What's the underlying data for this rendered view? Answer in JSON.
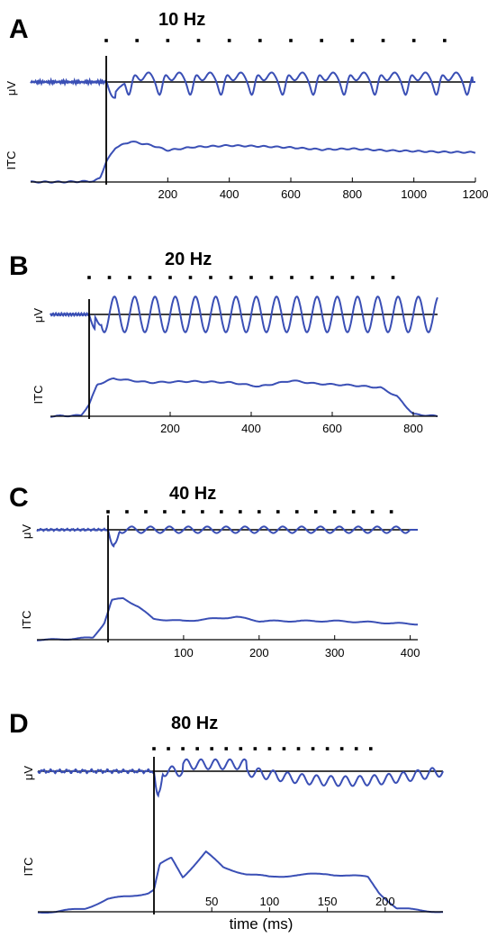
{
  "colors": {
    "trace": "#3a4fb5",
    "axis": "#000000",
    "stim": "#000000"
  },
  "chart_data": [
    {
      "type": "line",
      "panel": "A",
      "title": "10 Hz",
      "ylabel_top": "μV",
      "ylabel_bottom": "ITC",
      "xlabel": "",
      "x_ticks": [
        200,
        400,
        600,
        800,
        1000,
        1200
      ],
      "xlim": [
        -150,
        1200
      ],
      "stimulus_onset": 0,
      "stim_markers": [
        0,
        100,
        200,
        300,
        400,
        500,
        600,
        700,
        800,
        900,
        1000,
        1100
      ],
      "uv_peak_shape": "narrow",
      "uv_osc_amp": 0.62,
      "uv_onset_dip": -1.0,
      "uv_end": 1190,
      "itc": [
        [
          -150,
          0.0
        ],
        [
          -40,
          0.02
        ],
        [
          -20,
          0.1
        ],
        [
          0,
          0.5
        ],
        [
          30,
          0.85
        ],
        [
          80,
          1.0
        ],
        [
          150,
          0.9
        ],
        [
          200,
          0.78
        ],
        [
          280,
          0.86
        ],
        [
          400,
          0.9
        ],
        [
          500,
          0.88
        ],
        [
          600,
          0.85
        ],
        [
          700,
          0.8
        ],
        [
          800,
          0.82
        ],
        [
          900,
          0.78
        ],
        [
          1000,
          0.76
        ],
        [
          1100,
          0.74
        ],
        [
          1200,
          0.73
        ]
      ]
    },
    {
      "type": "line",
      "panel": "B",
      "title": "20 Hz",
      "ylabel_top": "μV",
      "ylabel_bottom": "ITC",
      "xlabel": "",
      "x_ticks": [
        200,
        400,
        600,
        800
      ],
      "xlim": [
        -100,
        860
      ],
      "stimulus_onset": 0,
      "stim_markers": [
        0,
        50,
        100,
        150,
        200,
        250,
        300,
        350,
        400,
        450,
        500,
        550,
        600,
        650,
        700,
        750
      ],
      "uv_peak_shape": "sine",
      "uv_osc_amp": 0.9,
      "uv_onset_dip": -1.0,
      "uv_end": 860,
      "itc": [
        [
          -100,
          0.0
        ],
        [
          -20,
          0.02
        ],
        [
          0,
          0.3
        ],
        [
          20,
          0.8
        ],
        [
          60,
          0.95
        ],
        [
          150,
          0.85
        ],
        [
          250,
          0.88
        ],
        [
          350,
          0.85
        ],
        [
          420,
          0.75
        ],
        [
          500,
          0.9
        ],
        [
          560,
          0.82
        ],
        [
          650,
          0.78
        ],
        [
          720,
          0.72
        ],
        [
          760,
          0.5
        ],
        [
          800,
          0.05
        ],
        [
          860,
          0.0
        ]
      ]
    },
    {
      "type": "line",
      "panel": "C",
      "title": "40 Hz",
      "ylabel_top": "μV",
      "ylabel_bottom": "ITC",
      "xlabel": "",
      "x_ticks": [
        100,
        200,
        300,
        400
      ],
      "xlim": [
        -70,
        410
      ],
      "stimulus_onset": 0,
      "stim_markers": [
        0,
        25,
        50,
        75,
        100,
        125,
        150,
        175,
        200,
        225,
        250,
        275,
        300,
        325,
        350,
        375
      ],
      "uv_peak_shape": "sine",
      "uv_osc_amp": 0.3,
      "uv_onset_dip": -1.6,
      "uv_end": 400,
      "itc": [
        [
          -70,
          0.0
        ],
        [
          -20,
          0.05
        ],
        [
          -5,
          0.4
        ],
        [
          5,
          0.95
        ],
        [
          20,
          1.0
        ],
        [
          40,
          0.8
        ],
        [
          60,
          0.5
        ],
        [
          100,
          0.45
        ],
        [
          170,
          0.55
        ],
        [
          200,
          0.45
        ],
        [
          300,
          0.45
        ],
        [
          350,
          0.42
        ],
        [
          400,
          0.38
        ]
      ]
    },
    {
      "type": "line",
      "panel": "D",
      "title": "80 Hz",
      "ylabel_top": "μV",
      "ylabel_bottom": "ITC",
      "xlabel": "time (ms)",
      "x_ticks": [
        50,
        100,
        150,
        200
      ],
      "xlim": [
        -85,
        250
      ],
      "stimulus_onset": 0,
      "stim_markers": [
        0,
        12.5,
        25,
        37.5,
        50,
        62.5,
        75,
        87.5,
        100,
        112.5,
        125,
        137.5,
        150,
        162.5,
        175,
        187.5
      ],
      "uv_peak_shape": "sine",
      "uv_osc_amp": 0.25,
      "uv_onset_dip": -1.3,
      "uv_end": 250,
      "itc": [
        [
          -85,
          0.0
        ],
        [
          -60,
          0.05
        ],
        [
          -40,
          0.2
        ],
        [
          -20,
          0.25
        ],
        [
          -5,
          0.3
        ],
        [
          0,
          0.35
        ],
        [
          5,
          0.75
        ],
        [
          15,
          0.85
        ],
        [
          25,
          0.55
        ],
        [
          45,
          0.95
        ],
        [
          60,
          0.7
        ],
        [
          80,
          0.6
        ],
        [
          100,
          0.55
        ],
        [
          120,
          0.58
        ],
        [
          150,
          0.6
        ],
        [
          185,
          0.55
        ],
        [
          195,
          0.3
        ],
        [
          210,
          0.05
        ],
        [
          250,
          0.0
        ]
      ]
    }
  ]
}
